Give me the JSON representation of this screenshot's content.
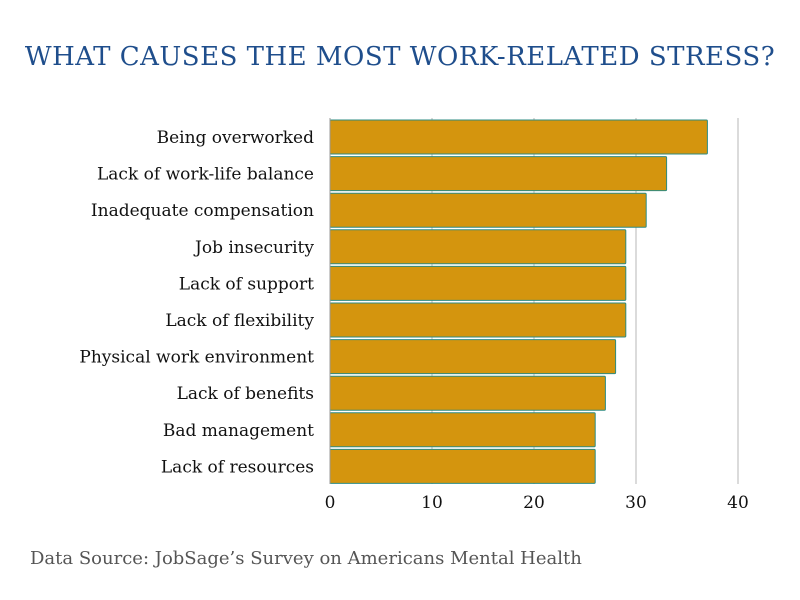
{
  "chart_data": {
    "type": "bar",
    "orientation": "horizontal",
    "title": "WHAT CAUSES THE MOST WORK-RELATED STRESS?",
    "categories": [
      "Being overworked",
      "Lack of work-life balance",
      "Inadequate compensation",
      "Job insecurity",
      "Lack of support",
      "Lack of flexibility",
      "Physical work environment",
      "Lack of benefits",
      "Bad management",
      "Lack of resources"
    ],
    "values": [
      37,
      33,
      31,
      29,
      29,
      29,
      28,
      27,
      26,
      26
    ],
    "xlim": [
      0,
      40
    ],
    "xticks": [
      "0",
      "10",
      "20",
      "30",
      "40"
    ],
    "grid": true,
    "bar_color": "#d4950e",
    "bar_edge_color": "#2e8b80",
    "title_color": "#1f4e8c"
  },
  "source": "Data Source: JobSage’s Survey on Americans Mental Health"
}
